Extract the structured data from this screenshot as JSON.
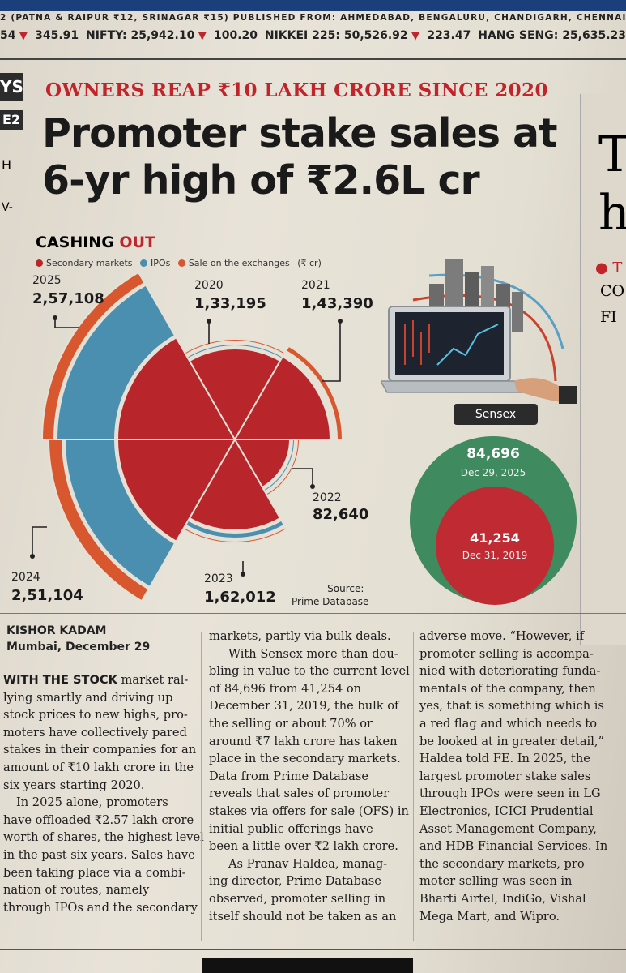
{
  "masthead": {
    "publine": "2 (PATNA & RAIPUR ₹12, SRINAGAR ₹15) PUBLISHED FROM: AHMEDABAD, BENGALURU, CHANDIGARH, CHENNAI, HYDERABAD"
  },
  "ticker": {
    "t1": "54",
    "t1_change": "345.91",
    "nifty_label": "NIFTY: 25,942.10",
    "nifty_change": "100.20",
    "nikkei_label": "NIKKEI 225: 50,526.92",
    "nikkei_change": "223.47",
    "hangseng_label": "HANG SENG: 25,635.23"
  },
  "left_strip": {
    "tag1": "YS",
    "tag2": "E2",
    "frag1": "H",
    "frag2": "V-"
  },
  "article": {
    "kicker": "OWNERS REAP ₹10 LAKH CRORE SINCE 2020",
    "headline": "Promoter stake sales at 6-yr high of ₹2.6L cr",
    "byline_name": "KISHOR KADAM",
    "byline_place": "Mumbai, December 29",
    "col1": {
      "lead": "WITH THE STOCK",
      "lines": [
        " market ral-",
        "lying smartly and driving up",
        "stock prices to new highs, pro-",
        "moters have collectively pared",
        "stakes in their companies for an",
        "amount of ₹10 lakh crore in the",
        "six years starting 2020.",
        "In 2025 alone, promoters",
        "have offloaded ₹2.57 lakh crore",
        "worth of shares, the highest level",
        "in the past six years. Sales have",
        "been taking place via a combi-",
        "nation of routes, namely",
        "through IPOs and the secondary"
      ]
    },
    "col2": {
      "lines": [
        "markets, partly via bulk deals.",
        "With Sensex more than dou-",
        "bling in value to the current level",
        "of 84,696 from 41,254 on",
        "December 31, 2019, the bulk of",
        "the selling or about 70% or",
        "around ₹7 lakh crore has taken",
        "place in the secondary markets.",
        "Data from Prime Database",
        "reveals that sales of promoter",
        "stakes via offers for sale (OFS) in",
        "initial public offerings have",
        "been a little over ₹2 lakh crore.",
        "As Pranav Haldea, manag-",
        "ing director, Prime Database",
        "observed, promoter selling in",
        "itself should not be taken as an"
      ]
    },
    "col3": {
      "lines": [
        "adverse move. “However, if",
        "promoter selling is accompa-",
        "nied with deteriorating funda-",
        "mentals of the company, then",
        "yes, that is something which is",
        "a red flag and which needs to",
        "be looked at in greater detail,”",
        "Haldea told FE. In 2025, the",
        "largest promoter stake sales",
        "through IPOs were seen in LG",
        "Electronics, ICICI Prudential",
        "Asset Management Company,",
        "and HDB Financial Services. In",
        "the secondary markets, pro",
        "moter selling was seen in",
        "Bharti Airtel, IndiGo, Vishal",
        "Mega Mart, and Wipro."
      ]
    }
  },
  "graphic": {
    "title_a": "CASHING ",
    "title_b": "OUT",
    "legend": [
      "Secondary markets",
      "IPOs",
      "Sale on the exchanges",
      "(₹ cr)"
    ],
    "colors": {
      "secondary": "#b8262c",
      "ipo": "#4a8fb0",
      "exchange": "#d9572e"
    },
    "years": [
      {
        "year": "2025",
        "total": "2,57,108"
      },
      {
        "year": "2020",
        "total": "1,33,195"
      },
      {
        "year": "2021",
        "total": "1,43,390"
      },
      {
        "year": "2022",
        "total": "82,640"
      },
      {
        "year": "2023",
        "total": "1,62,012"
      },
      {
        "year": "2024",
        "total": "2,51,104"
      }
    ],
    "source_label": "Source:",
    "source_name": "Prime Database",
    "sensex_label": "Sensex",
    "sensex_now_value": "84,696",
    "sensex_now_date": "Dec 29, 2025",
    "sensex_then_value": "41,254",
    "sensex_then_date": "Dec 31, 2019"
  },
  "right_col": {
    "letter1": "T",
    "letter2": "h",
    "frag1": "● T",
    "frag2": "CO",
    "frag3": "FI"
  }
}
